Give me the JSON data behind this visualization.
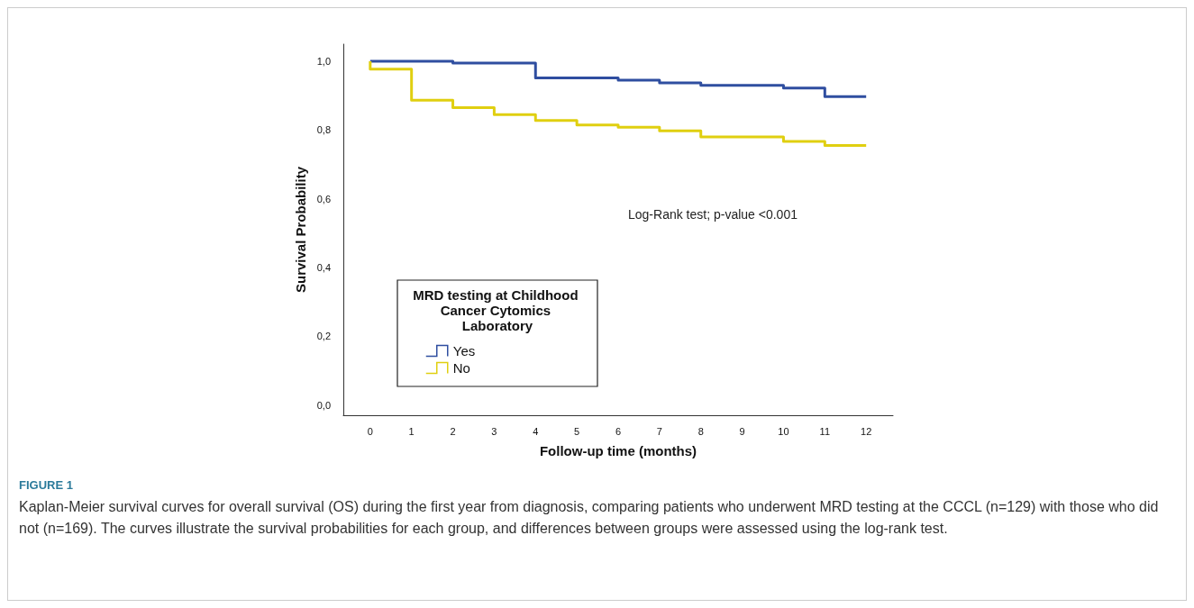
{
  "chart_data": {
    "type": "step",
    "xlabel": "Follow-up time (months)",
    "ylabel": "Survival Probability",
    "legend_title": "MRD testing at Childhood Cancer Cytomics Laboratory",
    "legend": "bottom left",
    "grid": false,
    "marker": "none",
    "line_style": "solid",
    "xlim": [
      -0.65,
      12.65
    ],
    "xticks": [
      0,
      1,
      2,
      3,
      4,
      5,
      6,
      7,
      8,
      9,
      10,
      11,
      12
    ],
    "ylim": [
      -0.03,
      1.05
    ],
    "yticks": [
      {
        "value": 0,
        "label": "0,0"
      },
      {
        "value": 0.2,
        "label": "0,2"
      },
      {
        "value": 0.4,
        "label": "0,4"
      },
      {
        "value": 0.6,
        "label": "0,6"
      },
      {
        "value": 0.8,
        "label": "0,8"
      },
      {
        "value": 1,
        "label": "1,0"
      }
    ],
    "series": [
      {
        "name": "Yes",
        "color": "#2f4ea0",
        "x": [
          0,
          2,
          4,
          6,
          7,
          8,
          10,
          11,
          12
        ],
        "values": [
          1.0,
          0.995,
          0.952,
          0.945,
          0.937,
          0.93,
          0.922,
          0.897,
          0.897
        ]
      },
      {
        "name": "No",
        "color": "#e0cf10",
        "x": [
          0,
          0,
          1,
          2,
          3,
          4,
          5,
          6,
          7,
          8,
          10,
          11,
          12
        ],
        "values": [
          1.0,
          0.977,
          0.887,
          0.865,
          0.845,
          0.828,
          0.815,
          0.808,
          0.798,
          0.78,
          0.767,
          0.755,
          0.755
        ]
      }
    ],
    "annotations": [
      "Log-Rank test; p-value <0.001",
      "FIGURE 1",
      "Kaplan-Meier survival curves for overall survival (OS) during the first year from diagnosis, comparing patients who underwent MRD testing at the CCCL (n=129) with those who did not (n=169). The curves illustrate the survival probabilities for each group, and differences between groups were assessed using the log-rank test."
    ]
  }
}
